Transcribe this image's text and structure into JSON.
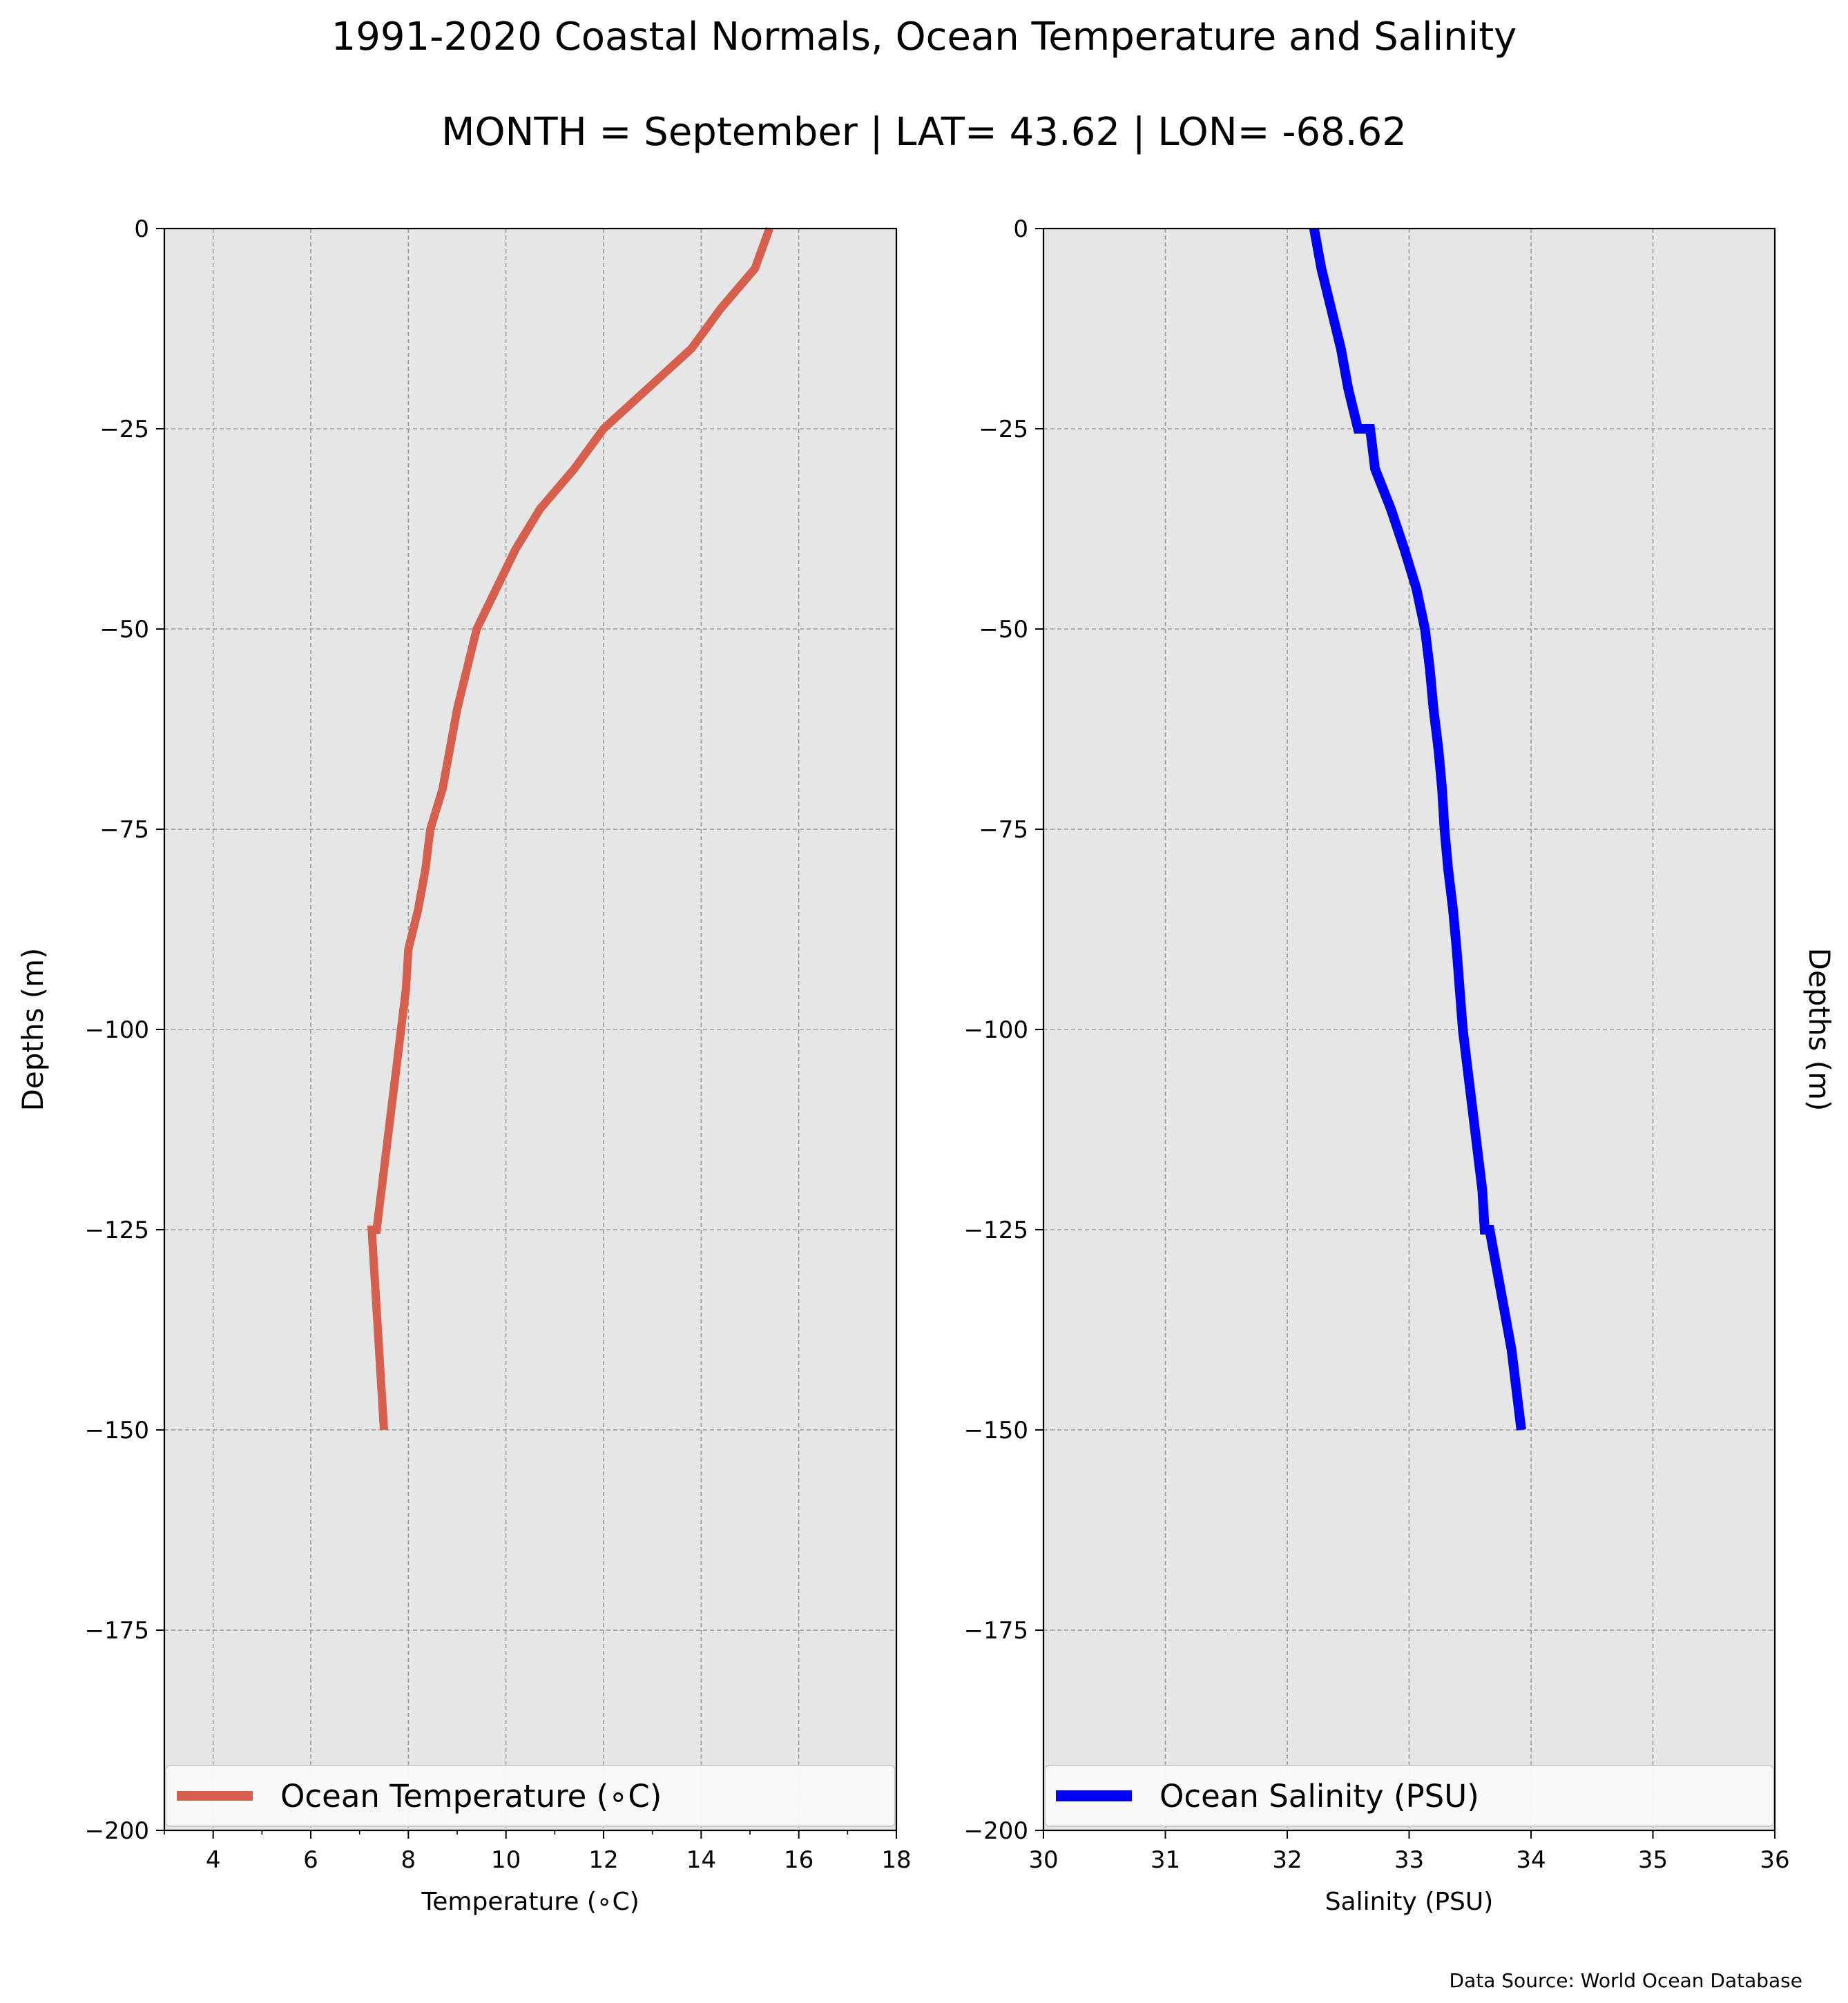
{
  "figure": {
    "title": "1991-2020 Coastal Normals, Ocean Temperature and Salinity",
    "subtitle": "MONTH = September | LAT= 43.62 | LON= -68.62",
    "source": "Data Source: World Ocean Database"
  },
  "chart_data": [
    {
      "type": "line",
      "xlabel": "Temperature ($^\\circ$C)",
      "xlabel_display": "Temperature (∘C)",
      "ylabel": "Depths (m)",
      "xlim": [
        3,
        18
      ],
      "ylim": [
        -200,
        0
      ],
      "xticks": [
        4,
        6,
        8,
        10,
        12,
        14,
        16,
        18
      ],
      "xtick_labels": [
        "4",
        "6",
        "8",
        "10",
        "12",
        "14",
        "16",
        "18"
      ],
      "yticks": [
        0,
        -25,
        -50,
        -75,
        -100,
        -125,
        -150,
        -175,
        -200
      ],
      "ytick_labels": [
        "0",
        "−25",
        "−50",
        "−75",
        "−100",
        "−125",
        "−150",
        "−175",
        "−200"
      ],
      "grid": true,
      "legend_position": "bottom",
      "series": [
        {
          "name": "Ocean Temperature (∘C)",
          "color": "#d65f4e",
          "x": [
            15.4,
            15.1,
            14.4,
            13.8,
            12.9,
            12.0,
            11.4,
            10.7,
            10.2,
            9.8,
            9.4,
            9.2,
            9.0,
            8.85,
            8.7,
            8.45,
            8.35,
            8.2,
            8.0,
            7.95,
            7.85,
            7.75,
            7.65,
            7.55,
            7.45,
            7.35,
            7.25,
            7.5
          ],
          "y": [
            0,
            -5,
            -10,
            -15,
            -20,
            -25,
            -30,
            -35,
            -40,
            -45,
            -50,
            -55,
            -60,
            -65,
            -70,
            -75,
            -80,
            -85,
            -90,
            -95,
            -100,
            -105,
            -110,
            -115,
            -120,
            -125,
            -125,
            -150
          ]
        }
      ]
    },
    {
      "type": "line",
      "xlabel": "Salinity (PSU)",
      "ylabel": "Depths (m)",
      "xlim": [
        30,
        36
      ],
      "ylim": [
        -200,
        0
      ],
      "xticks": [
        30,
        31,
        32,
        33,
        34,
        35,
        36
      ],
      "xtick_labels": [
        "30",
        "31",
        "32",
        "33",
        "34",
        "35",
        "36"
      ],
      "yticks": [
        0,
        -25,
        -50,
        -75,
        -100,
        -125,
        -150,
        -175,
        -200
      ],
      "ytick_labels": [
        "0",
        "−25",
        "−50",
        "−75",
        "−100",
        "−125",
        "−150",
        "−175",
        "−200"
      ],
      "grid": true,
      "legend_position": "bottom",
      "series": [
        {
          "name": "Ocean Salinity (PSU)",
          "color": "#0000ff",
          "x": [
            32.22,
            32.28,
            32.36,
            32.44,
            32.5,
            32.58,
            32.68,
            32.72,
            32.85,
            32.96,
            33.06,
            33.13,
            33.17,
            33.2,
            33.24,
            33.27,
            33.29,
            33.32,
            33.36,
            33.39,
            33.44,
            33.48,
            33.52,
            33.56,
            33.6,
            33.62,
            33.66,
            33.72,
            33.78,
            33.84,
            33.92
          ],
          "y": [
            0,
            -5,
            -10,
            -15,
            -20,
            -25,
            -25,
            -30,
            -35,
            -40,
            -45,
            -50,
            -55,
            -60,
            -65,
            -70,
            -75,
            -80,
            -85,
            -90,
            -100,
            -105,
            -110,
            -115,
            -120,
            -125,
            -125,
            -130,
            -135,
            -140,
            -150
          ]
        }
      ]
    }
  ]
}
